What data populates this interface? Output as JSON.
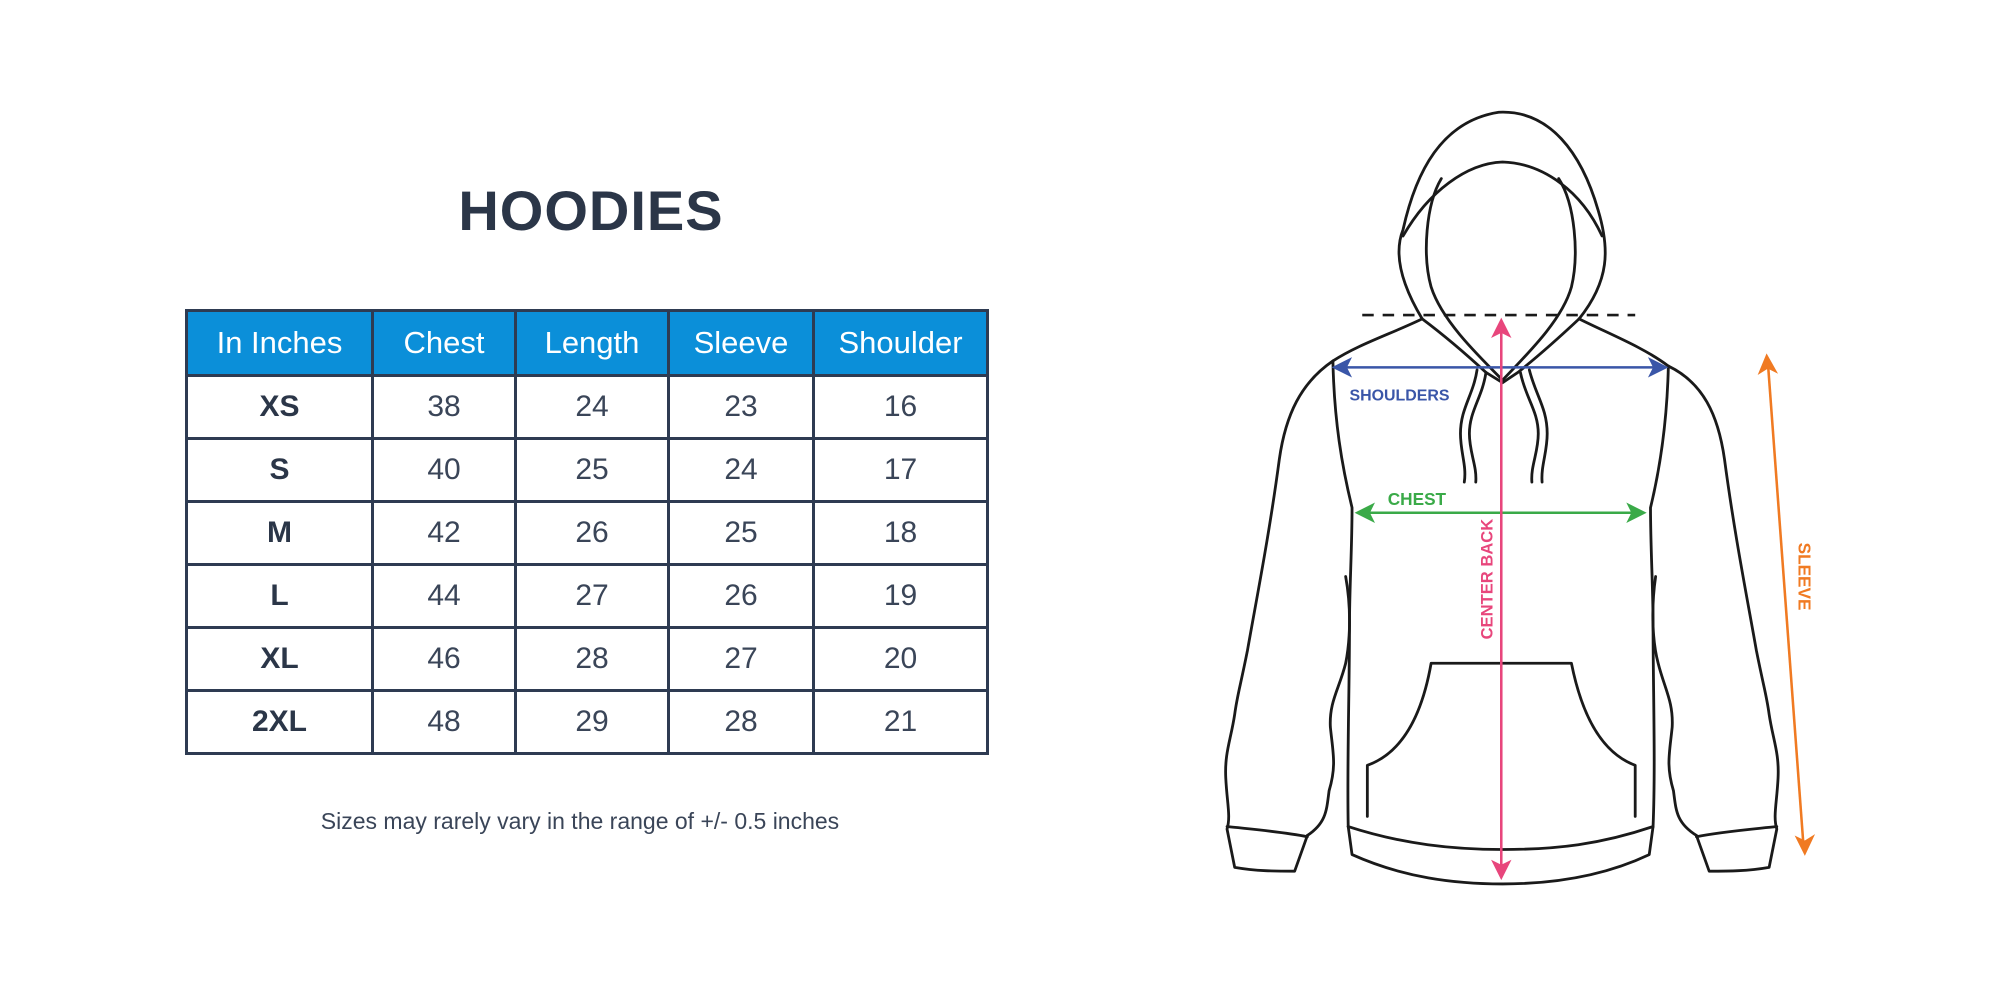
{
  "title": "HOODIES",
  "table": {
    "headers": [
      "In Inches",
      "Chest",
      "Length",
      "Sleeve",
      "Shoulder"
    ],
    "rows": [
      [
        "XS",
        "38",
        "24",
        "23",
        "16"
      ],
      [
        "S",
        "40",
        "25",
        "24",
        "17"
      ],
      [
        "M",
        "42",
        "26",
        "25",
        "18"
      ],
      [
        "L",
        "44",
        "27",
        "26",
        "19"
      ],
      [
        "XL",
        "46",
        "28",
        "27",
        "20"
      ],
      [
        "2XL",
        "48",
        "29",
        "28",
        "21"
      ]
    ]
  },
  "note": "Sizes may rarely vary in the range of +/- 0.5 inches",
  "diagram": {
    "labels": {
      "shoulders": "SHOULDERS",
      "chest": "CHEST",
      "center_back": "CENTER BACK",
      "sleeve": "SLEEVE"
    },
    "colors": {
      "header": "#0b8fd9",
      "shoulders": "#3a56a8",
      "chest": "#3aaa48",
      "center_back": "#e8467c",
      "sleeve": "#f07a22",
      "outline": "#1a1a1a"
    }
  }
}
